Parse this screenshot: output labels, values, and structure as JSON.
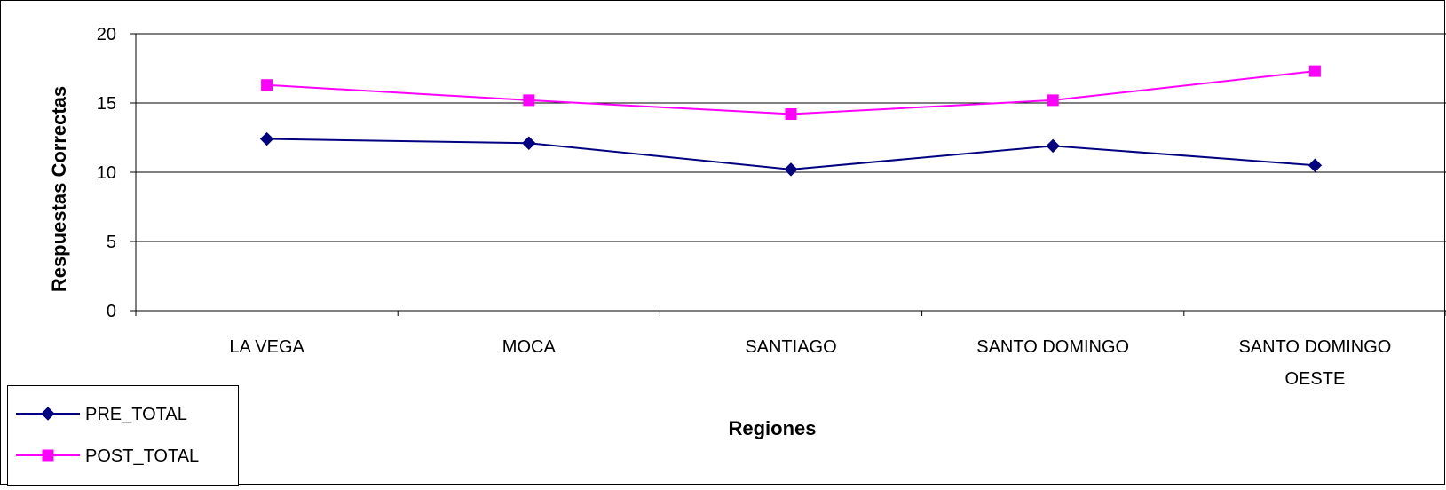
{
  "chart_data": {
    "type": "line",
    "title": "",
    "xlabel": "Regiones",
    "ylabel": "Respuestas Correctas",
    "categories": [
      [
        "LA VEGA"
      ],
      [
        "MOCA"
      ],
      [
        "SANTIAGO"
      ],
      [
        "SANTO DOMINGO"
      ],
      [
        "SANTO DOMINGO",
        "OESTE"
      ]
    ],
    "ylim": [
      0,
      20
    ],
    "yticks": [
      "0",
      "5",
      "10",
      "15",
      "20"
    ],
    "grid": true,
    "legend_position": "bottom-left",
    "series": [
      {
        "name": "PRE_TOTAL",
        "marker": "diamond",
        "color": "#000080",
        "values": [
          12.4,
          12.1,
          10.2,
          11.9,
          10.5
        ]
      },
      {
        "name": "POST_TOTAL",
        "marker": "square",
        "color": "#ff00ff",
        "values": [
          16.3,
          15.2,
          14.2,
          15.2,
          17.3
        ]
      }
    ]
  }
}
